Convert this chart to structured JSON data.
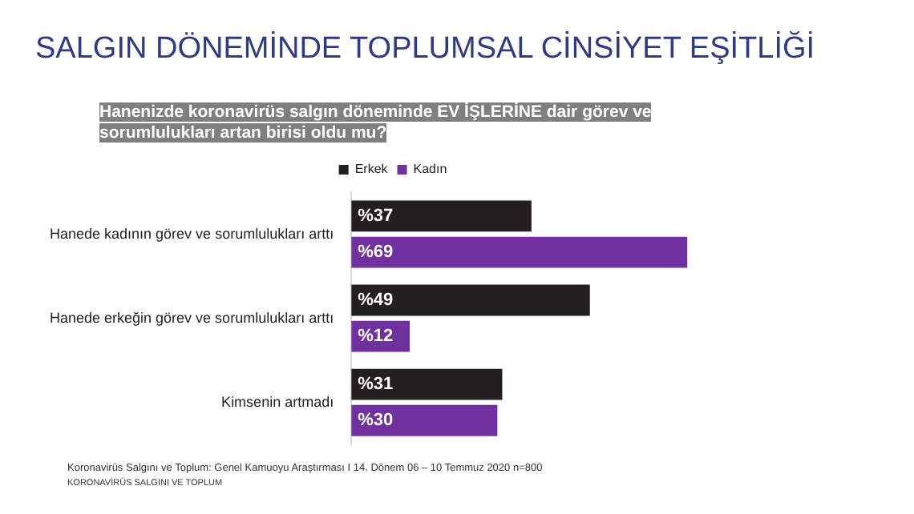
{
  "chart_data": {
    "type": "bar",
    "orientation": "horizontal",
    "title": "SALGIN DÖNEMİNDE TOPLUMSAL CİNSİYET EŞİTLİĞİ",
    "subtitle": "Hanenizde koronavirüs salgın döneminde EV İŞLERİNE  dair görev ve sorumlulukları artan birisi oldu mu?",
    "categories": [
      "Hanede kadının görev ve sorumlulukları arttı",
      "Hanede erkeğin görev ve sorumlulukları arttı",
      "Kimsenin artmadı"
    ],
    "series": [
      {
        "name": "Erkek",
        "color": "#231f20",
        "values": [
          37,
          49,
          31
        ],
        "value_labels": [
          "%37",
          "%49",
          "%31"
        ]
      },
      {
        "name": "Kadın",
        "color": "#7030a0",
        "values": [
          69,
          12,
          30
        ],
        "value_labels": [
          "%69",
          "%12",
          "%30"
        ]
      }
    ],
    "legend": "top",
    "annotations": [
      "Koronavirüs Salgını ve Toplum: Genel Kamuoyu Araştırması I 14. Dönem 06 – 10 Temmuz 2020   n=800",
      "KORONAVİRÜS SALGINI VE TOPLUM"
    ]
  }
}
